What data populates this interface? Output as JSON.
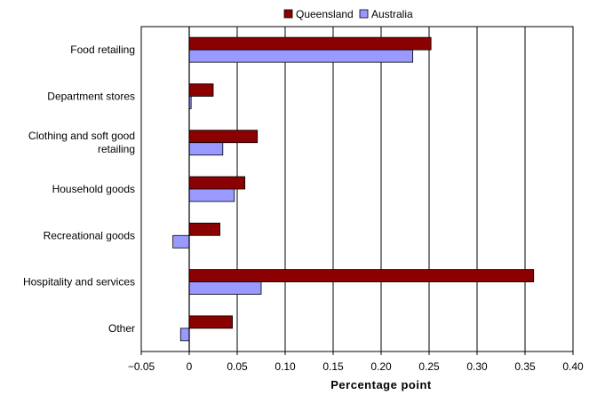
{
  "chart_data": {
    "type": "bar",
    "orientation": "horizontal",
    "categories": [
      [
        "Food retailing"
      ],
      [
        "Department stores"
      ],
      [
        "Clothing and soft good",
        "retailing"
      ],
      [
        "Household goods"
      ],
      [
        "Recreational goods"
      ],
      [
        "Hospitality and services"
      ],
      [
        "Other"
      ]
    ],
    "series": [
      {
        "name": "Queensland",
        "color": "#8b0000",
        "values": [
          0.252,
          0.025,
          0.071,
          0.058,
          0.032,
          0.359,
          0.045
        ]
      },
      {
        "name": "Australia",
        "color": "#9999ff",
        "values": [
          0.233,
          0.002,
          0.035,
          0.047,
          -0.017,
          0.075,
          -0.009
        ]
      }
    ],
    "xlim": [
      -0.05,
      0.4
    ],
    "xticks": [
      -0.05,
      0,
      0.05,
      0.1,
      0.15,
      0.2,
      0.25,
      0.3,
      0.35,
      0.4
    ],
    "xtick_labels": [
      "−0.05",
      "0",
      "0.05",
      "0.10",
      "0.15",
      "0.20",
      "0.25",
      "0.30",
      "0.35",
      "0.40"
    ],
    "xlabel": "Percentage point",
    "ylabel": "",
    "title": "",
    "grid": "vertical",
    "legend": "top-center"
  }
}
